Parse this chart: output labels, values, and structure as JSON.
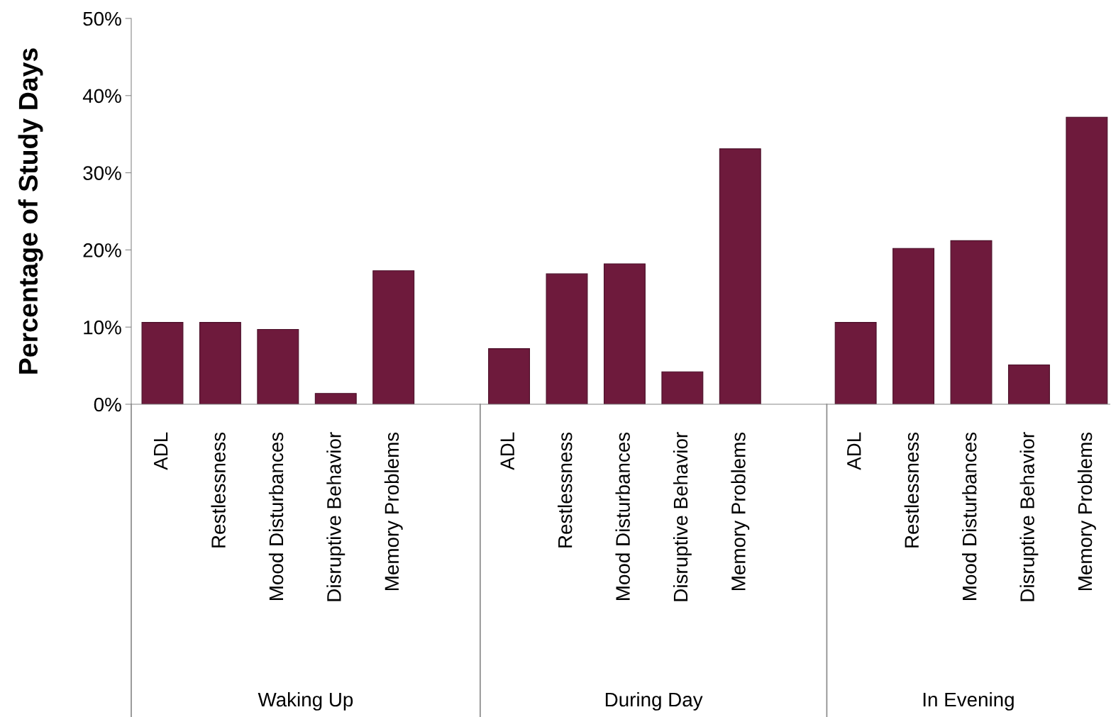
{
  "chart_data": {
    "type": "bar",
    "ylabel": "Percentage of Study Days",
    "categories": [
      "ADL",
      "Restlessness",
      "Mood Disturbances",
      "Disruptive Behavior",
      "Memory Problems",
      null,
      "ADL",
      "Restlessness",
      "Mood Disturbances",
      "Disruptive Behavior",
      "Memory Problems",
      null,
      "ADL",
      "Restlessness",
      "Mood Disturbances",
      "Disruptive Behavior",
      "Memory Problems"
    ],
    "values": [
      10.6,
      10.6,
      9.7,
      1.4,
      17.3,
      null,
      7.2,
      16.9,
      18.2,
      4.2,
      33.1,
      null,
      10.6,
      20.2,
      21.2,
      5.1,
      37.2
    ],
    "color": "#6e1a3c",
    "ylim": [
      0,
      50
    ],
    "yticks": [
      {
        "value": 0,
        "label": "0%"
      },
      {
        "value": 10,
        "label": "10%"
      },
      {
        "value": 20,
        "label": "20%"
      },
      {
        "value": 30,
        "label": "30%"
      },
      {
        "value": 40,
        "label": "40%"
      },
      {
        "value": 50,
        "label": "50%"
      }
    ],
    "annotations": [
      "Waking Up",
      "During Day",
      "In Evening"
    ],
    "grid": false
  }
}
